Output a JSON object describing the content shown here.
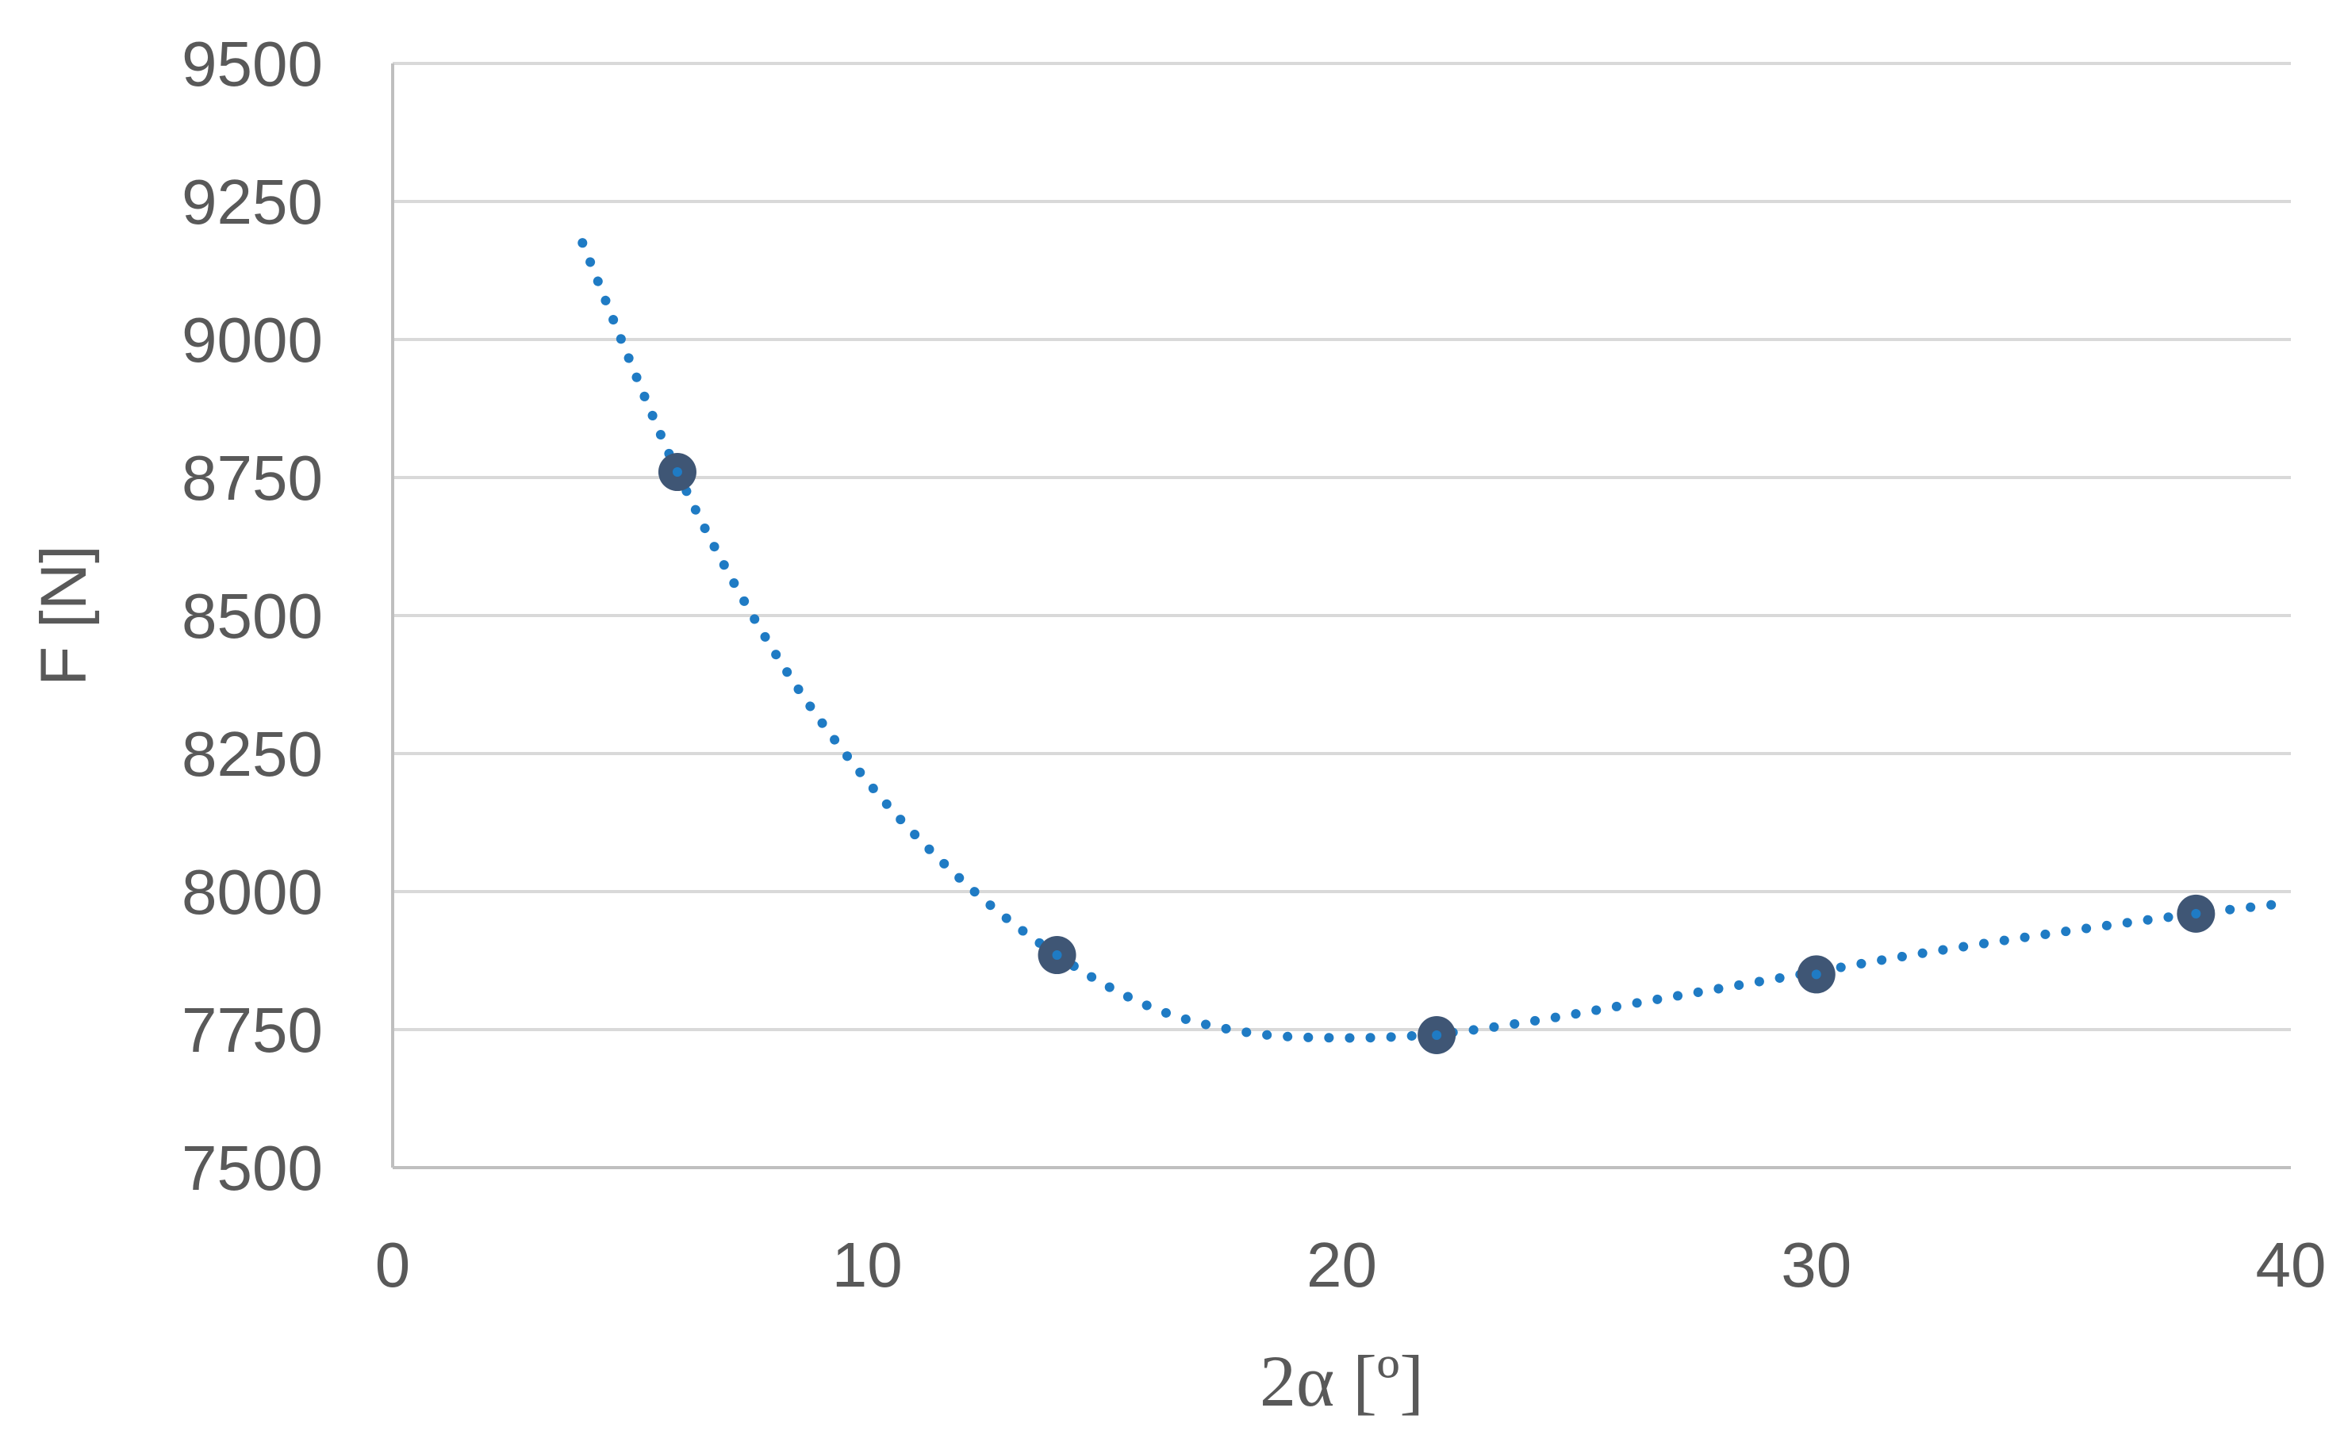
{
  "chart_data": {
    "type": "scatter",
    "title": "",
    "xlabel": "2α [º]",
    "ylabel": "F [N]",
    "xlim": [
      0,
      40
    ],
    "ylim": [
      7500,
      9500
    ],
    "x_ticks": [
      0,
      10,
      20,
      30,
      40
    ],
    "y_ticks": [
      7500,
      7750,
      8000,
      8250,
      8500,
      8750,
      9000,
      9250,
      9500
    ],
    "grid": "horizontal",
    "legend": "none",
    "series": [
      {
        "type": "scatter",
        "points": [
          {
            "x": 6,
            "y": 8760
          },
          {
            "x": 14,
            "y": 7885
          },
          {
            "x": 22,
            "y": 7740
          },
          {
            "x": 30,
            "y": 7850
          },
          {
            "x": 38,
            "y": 7960
          }
        ],
        "color": "#3f5675"
      },
      {
        "type": "trendline",
        "style": "dotted",
        "color": "#1f7bc4",
        "x_range": [
          4,
          40
        ],
        "points": [
          {
            "x": 4,
            "y": 9175
          },
          {
            "x": 6,
            "y": 8760
          },
          {
            "x": 8,
            "y": 8440
          },
          {
            "x": 10,
            "y": 8200
          },
          {
            "x": 12,
            "y": 8020
          },
          {
            "x": 14,
            "y": 7885
          },
          {
            "x": 16,
            "y": 7790
          },
          {
            "x": 18,
            "y": 7745
          },
          {
            "x": 20,
            "y": 7735
          },
          {
            "x": 22,
            "y": 7742
          },
          {
            "x": 24,
            "y": 7765
          },
          {
            "x": 26,
            "y": 7795
          },
          {
            "x": 28,
            "y": 7825
          },
          {
            "x": 30,
            "y": 7855
          },
          {
            "x": 32,
            "y": 7885
          },
          {
            "x": 34,
            "y": 7912
          },
          {
            "x": 36,
            "y": 7937
          },
          {
            "x": 38,
            "y": 7960
          },
          {
            "x": 40,
            "y": 7980
          }
        ]
      }
    ]
  }
}
